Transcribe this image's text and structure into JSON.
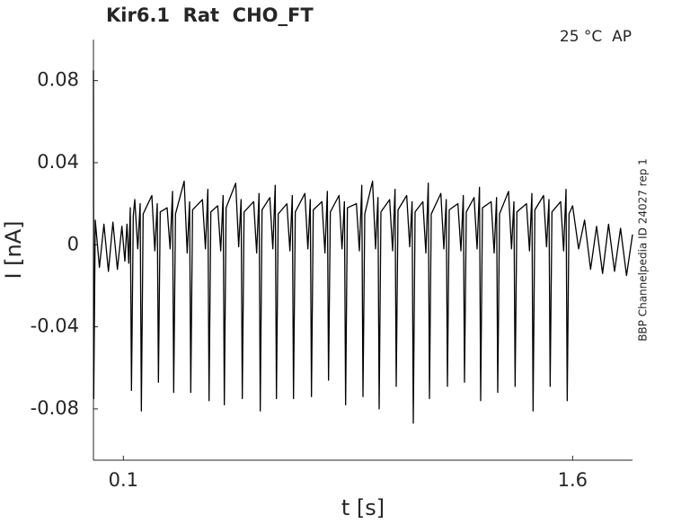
{
  "chart_data": {
    "type": "line",
    "title": "Kir6.1  Rat  CHO_FT",
    "annotation": "25 °C  AP",
    "side_note": "BBP Channelpedia ID 24027 rep 1",
    "x_label": "t [s]",
    "y_label": "I [nA]",
    "color": "#000000",
    "xlim": [
      0,
      1.8
    ],
    "ylim": [
      -0.105,
      0.1
    ],
    "xticks": [
      0.1,
      1.6
    ],
    "yticks": [
      0.08,
      0.04,
      0,
      -0.04,
      -0.08
    ],
    "x": [
      0,
      0.001,
      0.006,
      0.02,
      0.035,
      0.05,
      0.065,
      0.08,
      0.095,
      0.105,
      0.112,
      0.118,
      0.123,
      0.127,
      0.133,
      0.138,
      0.148,
      0.156,
      0.16,
      0.166,
      0.195,
      0.205,
      0.213,
      0.217,
      0.223,
      0.246,
      0.256,
      0.264,
      0.268,
      0.274,
      0.303,
      0.313,
      0.321,
      0.325,
      0.331,
      0.364,
      0.374,
      0.382,
      0.386,
      0.392,
      0.415,
      0.425,
      0.433,
      0.437,
      0.443,
      0.475,
      0.485,
      0.493,
      0.497,
      0.503,
      0.535,
      0.545,
      0.553,
      0.557,
      0.563,
      0.589,
      0.599,
      0.607,
      0.611,
      0.617,
      0.646,
      0.656,
      0.664,
      0.668,
      0.674,
      0.706,
      0.716,
      0.724,
      0.728,
      0.734,
      0.763,
      0.773,
      0.781,
      0.785,
      0.791,
      0.82,
      0.83,
      0.838,
      0.842,
      0.848,
      0.878,
      0.888,
      0.896,
      0.9,
      0.906,
      0.932,
      0.942,
      0.95,
      0.954,
      0.96,
      0.989,
      0.999,
      1.007,
      1.011,
      1.017,
      1.046,
      1.056,
      1.064,
      1.068,
      1.074,
      1.1,
      1.11,
      1.118,
      1.122,
      1.128,
      1.16,
      1.17,
      1.178,
      1.182,
      1.188,
      1.217,
      1.227,
      1.235,
      1.239,
      1.245,
      1.271,
      1.281,
      1.289,
      1.293,
      1.299,
      1.328,
      1.338,
      1.346,
      1.35,
      1.356,
      1.386,
      1.396,
      1.404,
      1.408,
      1.414,
      1.446,
      1.456,
      1.464,
      1.468,
      1.474,
      1.503,
      1.513,
      1.521,
      1.525,
      1.531,
      1.56,
      1.57,
      1.578,
      1.582,
      1.588,
      1.6,
      1.62,
      1.64,
      1.66,
      1.68,
      1.7,
      1.72,
      1.74,
      1.76,
      1.78,
      1.8
    ],
    "values": [
      0.085,
      -0.075,
      0.012,
      -0.011,
      0.01,
      -0.013,
      0.011,
      -0.012,
      0.009,
      -0.008,
      0.01,
      -0.009,
      0.018,
      -0.071,
      0.014,
      0.022,
      -0.002,
      0.02,
      -0.081,
      0.015,
      0.024,
      -0.003,
      0.02,
      -0.067,
      0.016,
      0.018,
      -0.002,
      0.026,
      -0.072,
      0.015,
      0.031,
      -0.004,
      0.021,
      -0.072,
      0.017,
      0.022,
      -0.002,
      0.027,
      -0.076,
      0.016,
      0.019,
      -0.003,
      0.024,
      -0.078,
      0.018,
      0.03,
      -0.001,
      0.022,
      -0.075,
      0.016,
      0.021,
      -0.004,
      0.025,
      -0.081,
      0.017,
      0.023,
      -0.002,
      0.029,
      -0.075,
      0.015,
      0.02,
      -0.003,
      0.024,
      -0.075,
      0.016,
      0.025,
      -0.002,
      0.022,
      -0.074,
      0.017,
      0.021,
      -0.004,
      0.026,
      -0.066,
      0.016,
      0.024,
      -0.002,
      0.021,
      -0.078,
      0.018,
      0.02,
      -0.003,
      0.029,
      -0.074,
      0.015,
      0.031,
      -0.002,
      0.023,
      -0.08,
      0.016,
      0.022,
      -0.003,
      0.027,
      -0.069,
      0.017,
      0.024,
      -0.001,
      0.021,
      -0.087,
      0.016,
      0.021,
      -0.004,
      0.03,
      -0.075,
      0.015,
      0.025,
      -0.002,
      0.022,
      -0.069,
      0.017,
      0.02,
      -0.003,
      0.024,
      -0.067,
      0.016,
      0.023,
      -0.002,
      0.028,
      -0.076,
      0.018,
      0.021,
      -0.004,
      0.023,
      -0.072,
      0.015,
      0.026,
      -0.002,
      0.021,
      -0.069,
      0.016,
      0.02,
      -0.003,
      0.025,
      -0.081,
      0.017,
      0.024,
      -0.001,
      0.022,
      -0.069,
      0.016,
      0.021,
      -0.003,
      0.027,
      -0.076,
      0.015,
      0.019,
      -0.002,
      0.012,
      -0.012,
      0.009,
      -0.014,
      0.01,
      -0.013,
      0.008,
      -0.015,
      0.005
    ]
  }
}
